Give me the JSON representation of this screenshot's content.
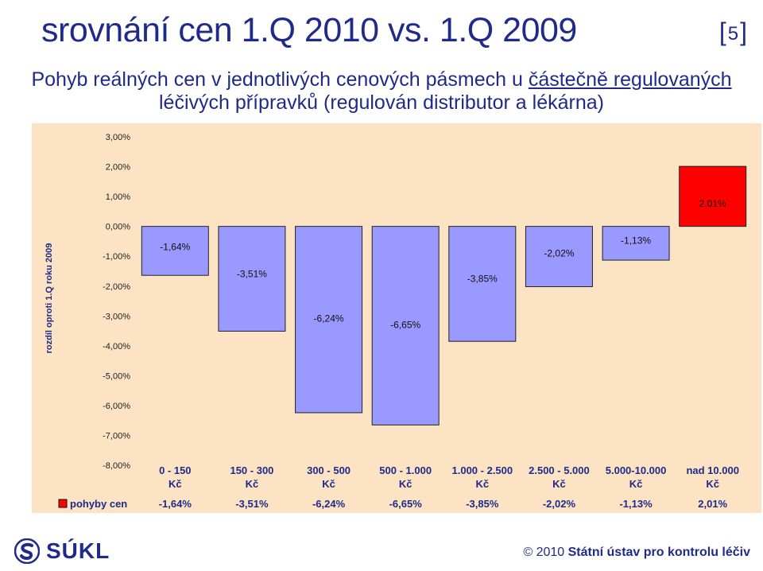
{
  "slide": {
    "title": "srovnání cen 1.Q 2010 vs. 1.Q 2009",
    "page_number": "5",
    "subtitle_line1_a": "Pohyb reálných cen v jednotlivých cenových pásmech u ",
    "subtitle_line1_b": "částečně regulovaných",
    "subtitle_line2": "léčivých přípravků (regulován distributor a lékárna)"
  },
  "footer": {
    "logo_text": "SÚKL",
    "copyright_year": "© 2010",
    "copyright_org": "Státní ústav pro kontrolu léčiv"
  },
  "colors": {
    "bar_fill": "#9999ff",
    "bar_highlight": "#ff0000",
    "panel_background": "#fbe3c3",
    "text_blue": "#1f2a8a"
  },
  "chart_data": {
    "type": "bar",
    "ylabel": "rozdíl oproti 1.Q roku 2009",
    "ylim": [
      -0.08,
      0.03
    ],
    "yticks": [
      "3,00%",
      "2,00%",
      "1,00%",
      "0,00%",
      "-1,00%",
      "-2,00%",
      "-3,00%",
      "-4,00%",
      "-5,00%",
      "-6,00%",
      "-7,00%",
      "-8,00%"
    ],
    "ytick_values": [
      0.03,
      0.02,
      0.01,
      0.0,
      -0.01,
      -0.02,
      -0.03,
      -0.04,
      -0.05,
      -0.06,
      -0.07,
      -0.08
    ],
    "categories": [
      [
        "0 - 150",
        "Kč"
      ],
      [
        "150 - 300",
        "Kč"
      ],
      [
        "300 - 500",
        "Kč"
      ],
      [
        "500 - 1.000",
        "Kč"
      ],
      [
        "1.000 - 2.500",
        "Kč"
      ],
      [
        "2.500 - 5.000",
        "Kč"
      ],
      [
        "5.000-10.000",
        "Kč"
      ],
      [
        "nad 10.000",
        "Kč"
      ]
    ],
    "series": [
      {
        "name": "pohyby cen",
        "values": [
          -0.0164,
          -0.0351,
          -0.0624,
          -0.0665,
          -0.0385,
          -0.0202,
          -0.0113,
          0.0201
        ],
        "labels": [
          "-1,64%",
          "-3,51%",
          "-6,24%",
          "-6,65%",
          "-3,85%",
          "-2,02%",
          "-1,13%",
          "2,01%"
        ]
      }
    ],
    "grid": false,
    "legend": "data-table"
  }
}
